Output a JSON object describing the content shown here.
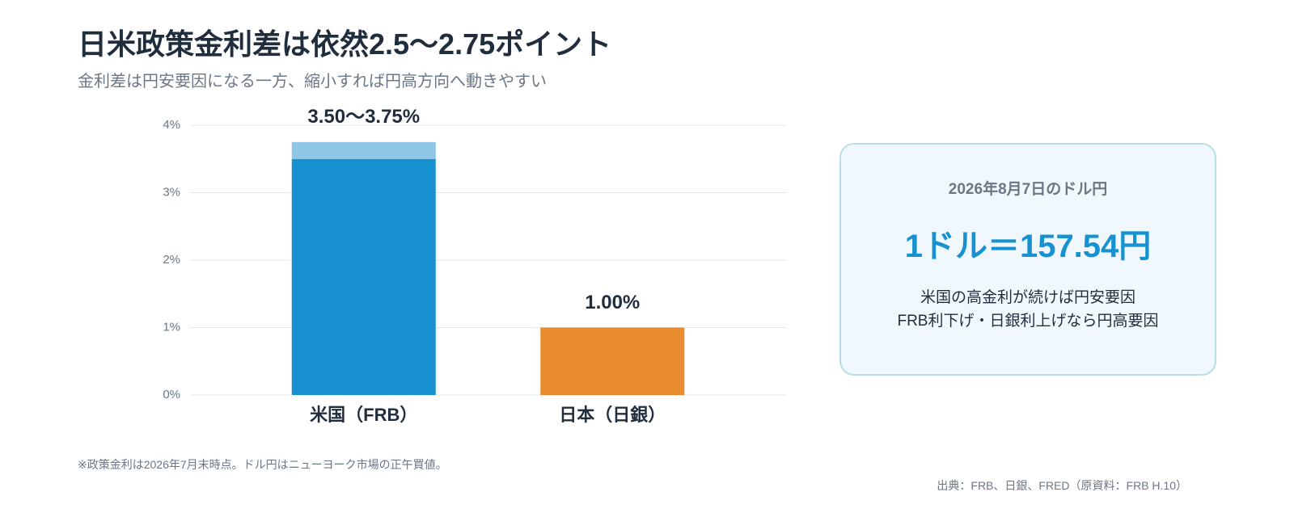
{
  "chart_data": {
    "type": "bar",
    "title": "日米政策金利差は依然2.5〜2.75ポイント",
    "subtitle": "金利差は円安要因になる一方、縮小すれば円高方向へ動きやすい",
    "categories": [
      "米国（FRB）",
      "日本（日銀）"
    ],
    "values": [
      3.5,
      1.0
    ],
    "colors": [
      "#1791cf",
      "#e88a2e"
    ],
    "upper": [
      3.75,
      null
    ],
    "upper_color": "#8fc6e6",
    "value_labels": [
      "3.50〜3.75%",
      "1.00%"
    ],
    "ylim": [
      0,
      4
    ],
    "yticks": [
      {
        "value": 0,
        "label": "0%"
      },
      {
        "value": 1,
        "label": "1%"
      },
      {
        "value": 2,
        "label": "2%"
      },
      {
        "value": 3,
        "label": "3%"
      },
      {
        "value": 4,
        "label": "4%"
      }
    ],
    "grid": true
  },
  "panel": {
    "heading": "2026年8月7日のドル円",
    "rate": "1ドル＝157.54円",
    "lines": [
      "米国の高金利が続けば円安要因",
      "FRB利下げ・日銀利上げなら円高要因"
    ]
  },
  "footnote": "※政策金利は2026年7月末時点。ドル円はニューヨーク市場の正午買値。",
  "source": "出典：FRB、日銀、FRED（原資料：FRB H.10）"
}
